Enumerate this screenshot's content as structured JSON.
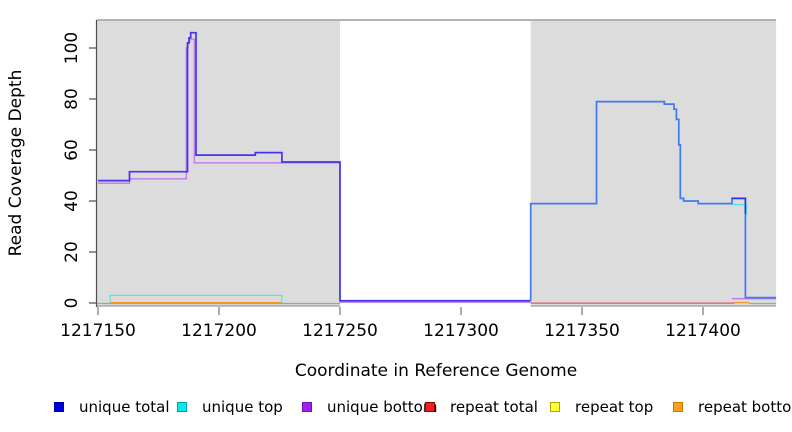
{
  "chart_data": {
    "type": "line",
    "xlabel": "Coordinate in Reference Genome",
    "ylabel": "Read Coverage Depth",
    "xlim": [
      1217149.6,
      1217430.2
    ],
    "ylim": [
      0,
      106
    ],
    "x_ticks": [
      "1217150",
      "1217200",
      "1217250",
      "1217300",
      "1217350",
      "1217400"
    ],
    "x_tick_values": [
      1217150,
      1217200,
      1217250,
      1217300,
      1217350,
      1217400
    ],
    "y_ticks": [
      "0",
      "20",
      "40",
      "60",
      "80",
      "100"
    ],
    "y_tick_values": [
      0,
      20,
      40,
      60,
      80,
      100
    ],
    "grid": false,
    "legend_position": "bottom",
    "shaded_regions": [
      {
        "x0": 1217149.6,
        "x1": 1217250,
        "color": "#DCDCDC"
      },
      {
        "x0": 1217328.8,
        "x1": 1217430.2,
        "color": "#DCDCDC"
      }
    ],
    "series": [
      {
        "name": "unique total",
        "color": "#0000E6",
        "steps": [
          [
            1217150,
            48
          ],
          [
            1217163,
            51.5
          ],
          [
            1217187,
            106
          ],
          [
            1217190,
            58
          ],
          [
            1217215,
            59
          ],
          [
            1217226,
            55
          ],
          [
            1217250,
            1
          ],
          [
            1217329,
            39
          ],
          [
            1217356,
            79
          ],
          [
            1217384,
            78
          ],
          [
            1217390,
            40
          ],
          [
            1217398,
            39
          ],
          [
            1217412,
            41
          ],
          [
            1217418,
            2
          ]
        ]
      },
      {
        "name": "unique top",
        "color": "#00EEEE",
        "steps": [
          [
            1217150,
            0
          ],
          [
            1217155,
            3
          ],
          [
            1217226,
            0
          ],
          [
            1217412,
            39
          ],
          [
            1217418,
            0
          ]
        ]
      },
      {
        "name": "unique bottom",
        "color": "#A020F0",
        "steps": [
          [
            1217150,
            47
          ],
          [
            1217163,
            48.5
          ],
          [
            1217187,
            104
          ],
          [
            1217190,
            55
          ],
          [
            1217250,
            0
          ],
          [
            1217412,
            2
          ]
        ]
      },
      {
        "name": "repeat total",
        "color": "#EE2222",
        "steps": [
          [
            1217150,
            0
          ]
        ]
      },
      {
        "name": "repeat top",
        "color": "#FFFF33",
        "steps": [
          [
            1217150,
            0
          ]
        ]
      },
      {
        "name": "repeat bottom",
        "color": "#FFA020",
        "steps": [
          [
            1217150,
            0.3
          ],
          [
            1217226,
            0
          ],
          [
            1217412,
            0.3
          ],
          [
            1217419,
            0
          ]
        ]
      }
    ],
    "render_lines": [
      {
        "name": "repeat-top-baseline-left",
        "color": "#74C474",
        "width": 1.2,
        "points": [
          [
            1217149.6,
            -0.2
          ],
          [
            1217250,
            -0.2
          ]
        ]
      },
      {
        "name": "repeat-total-baseline-right",
        "color": "#E0556A",
        "width": 1.3,
        "points": [
          [
            1217328.8,
            -0.05
          ],
          [
            1217413,
            -0.05
          ]
        ]
      },
      {
        "name": "repeat-bottom-left",
        "color": "#F59726",
        "width": 1.3,
        "points": [
          [
            1217155,
            0.15
          ],
          [
            1217226,
            0.15
          ]
        ]
      },
      {
        "name": "repeat-bottom-right",
        "color": "#F59726",
        "width": 1.3,
        "points": [
          [
            1217413,
            0.15
          ],
          [
            1217419,
            0.15
          ]
        ]
      },
      {
        "name": "repeat-top-baseline-far-right",
        "color": "#74C474",
        "width": 1.2,
        "points": [
          [
            1217419,
            -0.2
          ],
          [
            1217430.2,
            -0.2
          ]
        ]
      },
      {
        "name": "unique-top-left",
        "color": "#55E6E6",
        "width": 1.3,
        "points": [
          [
            1217155,
            0.3
          ],
          [
            1217155,
            3
          ],
          [
            1217226,
            3
          ],
          [
            1217226,
            0.3
          ]
        ]
      },
      {
        "name": "unique-bottom-left",
        "color": "#BD7BEA",
        "width": 1.3,
        "points": [
          [
            1217150,
            47
          ],
          [
            1217163,
            47
          ],
          [
            1217163,
            48.7
          ],
          [
            1217186.5,
            48.7
          ],
          [
            1217186.5,
            100
          ],
          [
            1217187.2,
            100
          ],
          [
            1217187.2,
            102
          ],
          [
            1217187.9,
            102
          ],
          [
            1217187.9,
            103.5
          ],
          [
            1217189.8,
            103.5
          ],
          [
            1217189.8,
            55
          ],
          [
            1217250,
            55
          ],
          [
            1217250,
            0.3
          ],
          [
            1217328.8,
            0.3
          ]
        ]
      },
      {
        "name": "unique-bottom-right",
        "color": "#BD7BEA",
        "width": 1.3,
        "points": [
          [
            1217412,
            1.7
          ],
          [
            1217430.2,
            1.7
          ]
        ]
      },
      {
        "name": "unique-total-left",
        "color": "#4433EE",
        "width": 1.7,
        "points": [
          [
            1217150,
            48
          ],
          [
            1217163,
            48
          ],
          [
            1217163,
            51.5
          ],
          [
            1217187,
            51.5
          ],
          [
            1217187,
            102
          ],
          [
            1217187.6,
            102
          ],
          [
            1217187.6,
            104
          ],
          [
            1217188.3,
            104
          ],
          [
            1217188.3,
            106
          ],
          [
            1217190.5,
            106
          ],
          [
            1217190.5,
            58
          ],
          [
            1217215,
            58
          ],
          [
            1217215,
            59
          ],
          [
            1217226,
            59
          ],
          [
            1217226,
            55.3
          ],
          [
            1217250,
            55.3
          ],
          [
            1217250,
            0.9
          ],
          [
            1217328.8,
            0.9
          ]
        ]
      },
      {
        "name": "unique-total-right",
        "color": "#3E7BF2",
        "width": 1.7,
        "points": [
          [
            1217328.8,
            0.9
          ],
          [
            1217328.8,
            39
          ],
          [
            1217356,
            39
          ],
          [
            1217356,
            79
          ],
          [
            1217384,
            79
          ],
          [
            1217384,
            78
          ],
          [
            1217388,
            78
          ],
          [
            1217388,
            76
          ],
          [
            1217389,
            76
          ],
          [
            1217389,
            72
          ],
          [
            1217390,
            72
          ],
          [
            1217390,
            62
          ],
          [
            1217390.6,
            62
          ],
          [
            1217390.6,
            41
          ],
          [
            1217392,
            41
          ],
          [
            1217392,
            40
          ],
          [
            1217398,
            40
          ],
          [
            1217398,
            39
          ],
          [
            1217412,
            39
          ],
          [
            1217412,
            41
          ],
          [
            1217417.5,
            41
          ],
          [
            1217417.5,
            2.1
          ],
          [
            1217430.2,
            2.1
          ]
        ]
      },
      {
        "name": "unique-top-notch-right",
        "color": "#4FE3E6",
        "width": 1.3,
        "points": [
          [
            1217412,
            38.6
          ],
          [
            1217418,
            38.6
          ],
          [
            1217418,
            34
          ]
        ]
      },
      {
        "name": "unique-total-notch-right",
        "color": "#2B2BE0",
        "width": 1.5,
        "points": [
          [
            1217411.8,
            41
          ],
          [
            1217417.5,
            41
          ],
          [
            1217417.5,
            35
          ]
        ]
      }
    ]
  },
  "axes": {
    "x_title": "Coordinate in Reference Genome",
    "y_title": "Read Coverage Depth"
  },
  "legend": {
    "items": [
      {
        "label": "unique total",
        "fill": "#0000E6",
        "border": "#0000A0"
      },
      {
        "label": "unique top",
        "fill": "#00EEEE",
        "border": "#00A0A0"
      },
      {
        "label": "unique bottom",
        "fill": "#A020F0",
        "border": "#7711BB"
      },
      {
        "label": "repeat total",
        "fill": "#EE2222",
        "border": "#990000"
      },
      {
        "label": "repeat top",
        "fill": "#FFFF33",
        "border": "#AAAA00"
      },
      {
        "label": "repeat bottom",
        "fill": "#FFA020",
        "border": "#CC7700"
      }
    ]
  },
  "colors": {
    "shade": "#DCDCDC",
    "frame": "#9A9A9A",
    "y_axis": "#4D4D4D",
    "x_tick": "#999999"
  }
}
